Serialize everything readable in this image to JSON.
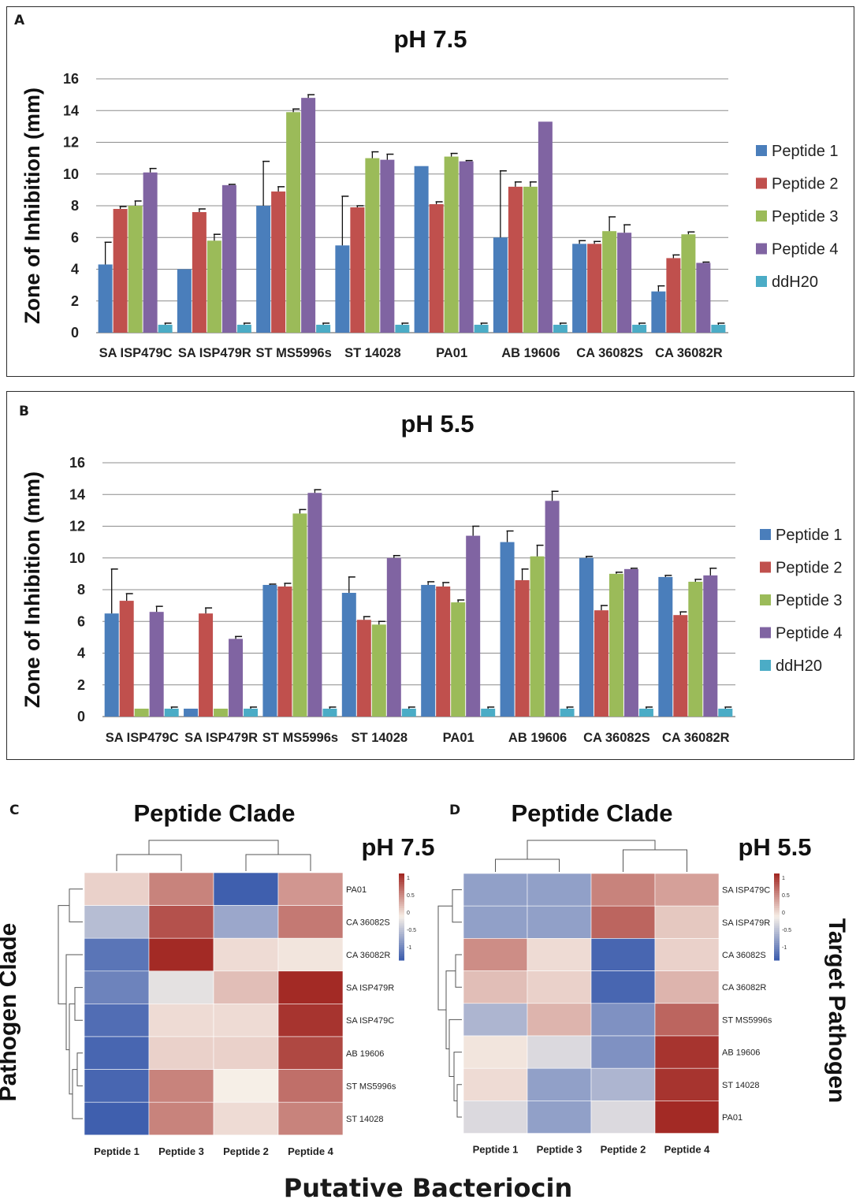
{
  "colors": {
    "series": [
      "#4a7ebb",
      "#c0504d",
      "#9bbb59",
      "#8064a2",
      "#4bacc6"
    ],
    "heat_low": "#3f5fae",
    "heat_mid": "#f6efe7",
    "heat_high": "#a32a25",
    "axis": "#333333",
    "grid": "#8c8c8c"
  },
  "chart_data": [
    {
      "panel": "A",
      "type": "bar",
      "title": "pH 7.5",
      "ylabel": "Zone of Inhibition (mm)",
      "ylim": [
        0,
        16
      ],
      "yticks": [
        "0",
        "2",
        "4",
        "6",
        "8",
        "10",
        "12",
        "14",
        "16"
      ],
      "grid": true,
      "legend_position": "right",
      "categories": [
        "SA ISP479C",
        "SA ISP479R",
        "ST MS5996s",
        "ST 14028",
        "PA01",
        "AB 19606",
        "CA 36082S",
        "CA 36082R"
      ],
      "series": [
        {
          "name": "Peptide 1",
          "values": [
            4.3,
            4.0,
            8.0,
            5.5,
            10.5,
            6.0,
            5.6,
            2.6
          ],
          "errors": [
            1.4,
            0.0,
            2.8,
            3.1,
            0.0,
            4.2,
            0.2,
            0.35
          ]
        },
        {
          "name": "Peptide 2",
          "values": [
            7.8,
            7.6,
            8.9,
            7.9,
            8.1,
            9.2,
            5.6,
            4.7
          ],
          "errors": [
            0.15,
            0.2,
            0.3,
            0.1,
            0.15,
            0.3,
            0.15,
            0.2
          ]
        },
        {
          "name": "Peptide 3",
          "values": [
            8.0,
            5.8,
            13.9,
            11.0,
            11.1,
            9.2,
            6.4,
            6.2
          ],
          "errors": [
            0.3,
            0.4,
            0.2,
            0.4,
            0.2,
            0.3,
            0.9,
            0.15
          ]
        },
        {
          "name": "Peptide 4",
          "values": [
            10.1,
            9.3,
            14.8,
            10.9,
            10.8,
            13.3,
            6.3,
            4.4
          ],
          "errors": [
            0.25,
            0.05,
            0.2,
            0.35,
            0.05,
            0.0,
            0.5,
            0.05
          ]
        },
        {
          "name": "ddH20",
          "values": [
            0.5,
            0.5,
            0.5,
            0.5,
            0.5,
            0.5,
            0.5,
            0.5
          ],
          "errors": [
            0.1,
            0.1,
            0.1,
            0.1,
            0.1,
            0.1,
            0.1,
            0.1
          ]
        }
      ]
    },
    {
      "panel": "B",
      "type": "bar",
      "title": "pH 5.5",
      "ylabel": "Zone of Inhibition (mm)",
      "ylim": [
        0,
        16
      ],
      "yticks": [
        "0",
        "2",
        "4",
        "6",
        "8",
        "10",
        "12",
        "14",
        "16"
      ],
      "grid": true,
      "legend_position": "right",
      "categories": [
        "SA ISP479C",
        "SA ISP479R",
        "ST MS5996s",
        "ST 14028",
        "PA01",
        "AB 19606",
        "CA 36082S",
        "CA 36082R"
      ],
      "series": [
        {
          "name": "Peptide 1",
          "values": [
            6.5,
            0.5,
            8.3,
            7.8,
            8.3,
            11.0,
            10.0,
            8.8
          ],
          "errors": [
            2.8,
            0.0,
            0.05,
            1.0,
            0.2,
            0.7,
            0.1,
            0.1
          ]
        },
        {
          "name": "Peptide 2",
          "values": [
            7.3,
            6.5,
            8.2,
            6.1,
            8.2,
            8.6,
            6.7,
            6.4
          ],
          "errors": [
            0.45,
            0.35,
            0.2,
            0.2,
            0.25,
            0.7,
            0.3,
            0.2
          ]
        },
        {
          "name": "Peptide 3",
          "values": [
            0.5,
            0.5,
            12.8,
            5.8,
            7.2,
            10.1,
            9.0,
            8.5
          ],
          "errors": [
            0.0,
            0.0,
            0.25,
            0.2,
            0.15,
            0.7,
            0.1,
            0.15
          ]
        },
        {
          "name": "Peptide 4",
          "values": [
            6.6,
            4.9,
            14.1,
            10.0,
            11.4,
            13.6,
            9.3,
            8.9
          ],
          "errors": [
            0.35,
            0.15,
            0.2,
            0.15,
            0.6,
            0.6,
            0.05,
            0.45
          ]
        },
        {
          "name": "ddH20",
          "values": [
            0.5,
            0.5,
            0.5,
            0.5,
            0.5,
            0.5,
            0.5,
            0.5
          ],
          "errors": [
            0.1,
            0.1,
            0.1,
            0.1,
            0.1,
            0.1,
            0.1,
            0.1
          ]
        }
      ]
    },
    {
      "panel": "C",
      "type": "heatmap",
      "title": "Peptide Clade",
      "subtitle": "pH 7.5",
      "ylabel": "Pathogen Clade",
      "columns": [
        "Peptide 1",
        "Peptide 3",
        "Peptide 2",
        "Peptide 4"
      ],
      "rows": [
        "PA01",
        "CA 36082S",
        "CA 36082R",
        "SA ISP479R",
        "SA ISP479C",
        "AB 19606",
        "ST MS5996s",
        "ST 14028"
      ],
      "values": [
        [
          0.15,
          0.55,
          -1.0,
          0.45
        ],
        [
          -0.35,
          0.8,
          -0.5,
          0.6
        ],
        [
          -0.85,
          1.0,
          0.1,
          0.05
        ],
        [
          -0.75,
          -0.1,
          0.25,
          1.0
        ],
        [
          -0.9,
          0.1,
          0.1,
          0.95
        ],
        [
          -0.95,
          0.15,
          0.15,
          0.85
        ],
        [
          -0.95,
          0.55,
          0.0,
          0.65
        ],
        [
          -1.0,
          0.55,
          0.1,
          0.55
        ]
      ],
      "scale_ticks": [
        "1",
        "0.5",
        "0",
        "-0.5",
        "-1"
      ]
    },
    {
      "panel": "D",
      "type": "heatmap",
      "title": "Peptide Clade",
      "subtitle": "pH 5.5",
      "ylabel": "Target Pathogen",
      "columns": [
        "Peptide 1",
        "Peptide 3",
        "Peptide 2",
        "Peptide 4"
      ],
      "rows": [
        "SA ISP479C",
        "SA ISP479R",
        "CA 36082S",
        "CA 36082R",
        "ST MS5996s",
        "AB 19606",
        "ST 14028",
        "PA01"
      ],
      "values": [
        [
          -0.55,
          -0.55,
          0.55,
          0.4
        ],
        [
          -0.55,
          -0.55,
          0.7,
          0.2
        ],
        [
          0.5,
          0.1,
          -0.95,
          0.15
        ],
        [
          0.25,
          0.15,
          -0.95,
          0.3
        ],
        [
          -0.4,
          0.3,
          -0.65,
          0.7
        ],
        [
          0.05,
          -0.15,
          -0.65,
          0.95
        ],
        [
          0.1,
          -0.55,
          -0.4,
          0.95
        ],
        [
          -0.15,
          -0.55,
          -0.15,
          1.0
        ]
      ],
      "scale_ticks": [
        "1",
        "0.5",
        "0",
        "-0.5",
        "-1"
      ]
    }
  ],
  "labels": {
    "panel_a": "A",
    "panel_b": "B",
    "panel_c": "C",
    "panel_d": "D",
    "bottom_xlabel": "Putative Bacteriocin"
  }
}
